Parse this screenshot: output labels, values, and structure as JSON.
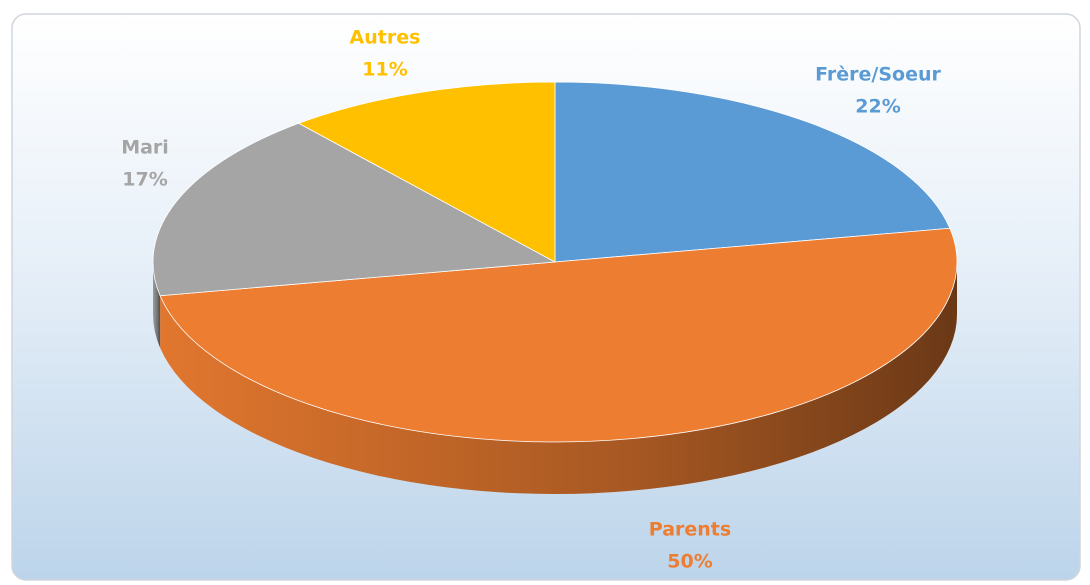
{
  "chart_data": {
    "type": "pie",
    "categories": [
      "Frère/Soeur",
      "Parents",
      "Mari",
      "Autres"
    ],
    "values": [
      22,
      50,
      17,
      11
    ],
    "value_labels": [
      "22%",
      "50%",
      "17%",
      "11%"
    ],
    "colors": [
      "#5b9bd5",
      "#ed7d31",
      "#a5a5a5",
      "#ffc000"
    ]
  }
}
